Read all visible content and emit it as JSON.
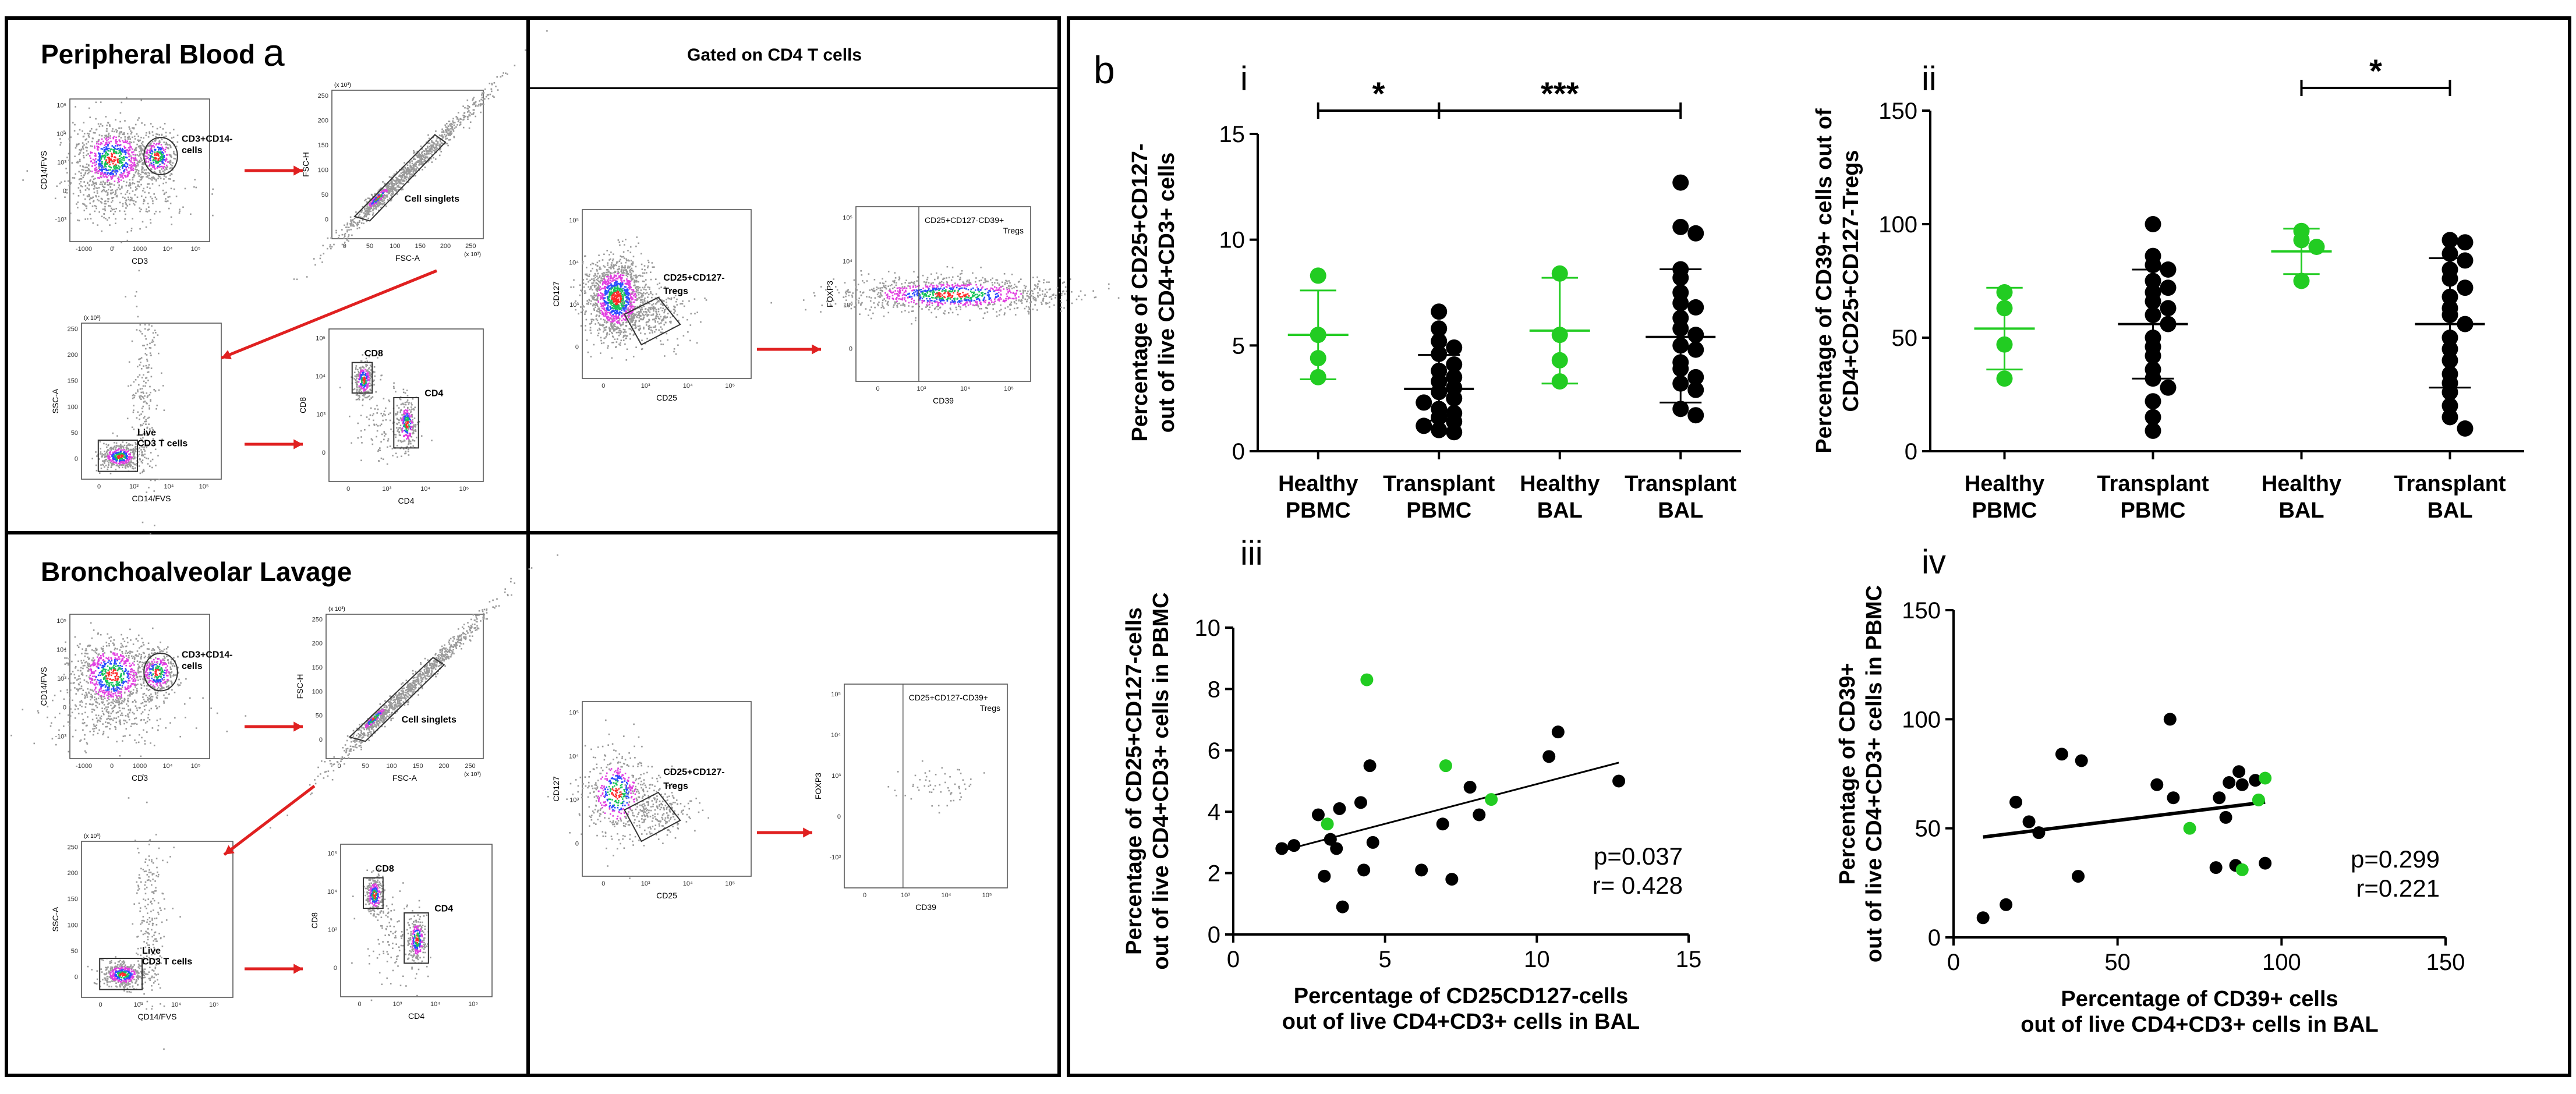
{
  "panel_a": {
    "letter": "a",
    "gated_header": "Gated on CD4 T cells",
    "rows": [
      {
        "title": "Peripheral Blood",
        "plots": [
          {
            "id": "p1",
            "xlabel": "CD3",
            "ylabel": "CD14/FVS",
            "xticks": [
              "-1000",
              "0",
              "1000",
              "10⁴",
              "10⁵"
            ],
            "yticks": [
              "10⁵",
              "10⁴",
              "10³",
              "0",
              "-10³"
            ],
            "gate_label": "CD3+CD14- cells"
          },
          {
            "id": "p2",
            "xlabel": "FSC-A",
            "ylabel": "FSC-H",
            "xticks": [
              "0",
              "50",
              "100",
              "150",
              "200",
              "250"
            ],
            "yticks": [
              "250",
              "200",
              "150",
              "100",
              "50",
              "0"
            ],
            "unit_x": "(x 10³)",
            "unit_y": "(x 10³)",
            "gate_label": "Cell singlets"
          },
          {
            "id": "p3",
            "xlabel": "CD14/FVS",
            "ylabel": "SSC-A",
            "xticks": [
              "0",
              "10³",
              "10⁴",
              "10⁵"
            ],
            "yticks": [
              "250",
              "200",
              "150",
              "100",
              "50",
              "0"
            ],
            "unit_y": "(x 10³)",
            "gate_label": "Live CD3 T cells"
          },
          {
            "id": "p4",
            "xlabel": "CD4",
            "ylabel": "CD8",
            "xticks": [
              "0",
              "10³",
              "10⁴",
              "10⁵"
            ],
            "yticks": [
              "10⁵",
              "10⁴",
              "10³",
              "0"
            ],
            "gate_label": "CD8",
            "gate_label2": "CD4"
          },
          {
            "id": "p5",
            "xlabel": "CD25",
            "ylabel": "CD127",
            "xticks": [
              "0",
              "10³",
              "10⁴",
              "10⁵"
            ],
            "yticks": [
              "10⁵",
              "10⁴",
              "10³",
              "0"
            ],
            "gate_label": "CD25+CD127- Tregs"
          },
          {
            "id": "p6",
            "xlabel": "CD39",
            "ylabel": "FOXP3",
            "xticks": [
              "0",
              "10³",
              "10⁴",
              "10⁵"
            ],
            "yticks": [
              "10⁵",
              "10⁴",
              "10³",
              "0"
            ],
            "gate_label": "CD25+CD127-CD39+ Tregs"
          }
        ]
      },
      {
        "title": "Bronchoalveolar Lavage",
        "plots": [
          {
            "id": "b1",
            "xlabel": "CD3",
            "ylabel": "CD14/FVS",
            "xticks": [
              "-1000",
              "0",
              "1000",
              "10⁴",
              "10⁵"
            ],
            "yticks": [
              "10⁵",
              "10⁴",
              "10³",
              "0",
              "-10³"
            ],
            "gate_label": "CD3+CD14- cells"
          },
          {
            "id": "b2",
            "xlabel": "FSC-A",
            "ylabel": "FSC-H",
            "xticks": [
              "0",
              "50",
              "100",
              "150",
              "200",
              "250"
            ],
            "yticks": [
              "250",
              "200",
              "150",
              "100",
              "50",
              "0"
            ],
            "unit_x": "(x 10³)",
            "unit_y": "(x 10³)",
            "gate_label": "Cell singlets"
          },
          {
            "id": "b3",
            "xlabel": "CD14/FVS",
            "ylabel": "SSC-A",
            "xticks": [
              "0",
              "10³",
              "10⁴",
              "10⁵"
            ],
            "yticks": [
              "250",
              "200",
              "150",
              "100",
              "50",
              "0"
            ],
            "unit_y": "(x 10³)",
            "gate_label": "Live CD3 T cells"
          },
          {
            "id": "b4",
            "xlabel": "CD4",
            "ylabel": "CD8",
            "xticks": [
              "0",
              "10³",
              "10⁴",
              "10⁵"
            ],
            "yticks": [
              "10⁵",
              "10⁴",
              "10³",
              "0"
            ],
            "gate_label": "CD8",
            "gate_label2": "CD4"
          },
          {
            "id": "b5",
            "xlabel": "CD25",
            "ylabel": "CD127",
            "xticks": [
              "0",
              "10³",
              "10⁴",
              "10⁵"
            ],
            "yticks": [
              "10⁵",
              "10⁴",
              "10³",
              "0"
            ],
            "gate_label": "CD25+CD127- Tregs"
          },
          {
            "id": "b6",
            "xlabel": "CD39",
            "ylabel": "FOXP3",
            "xticks": [
              "0",
              "10³",
              "10⁴",
              "10⁵"
            ],
            "yticks": [
              "10⁵",
              "10⁴",
              "10³",
              "0",
              "-10³"
            ],
            "gate_label": "CD25+CD127-CD39+ Tregs"
          }
        ]
      }
    ]
  },
  "panel_b": {
    "letter": "b"
  },
  "colors": {
    "healthy": "#22cc22",
    "transplant": "#000000"
  },
  "chart_data": [
    {
      "id": "i",
      "type": "scatter",
      "panel_label": "i",
      "ylabel": [
        "Percentage of CD25+CD127-",
        "out of live CD4+CD3+ cells"
      ],
      "ylim": [
        0,
        15
      ],
      "yticks": [
        0,
        5,
        10,
        15
      ],
      "categories": [
        "Healthy PBMC",
        "Transplant PBMC",
        "Healthy BAL",
        "Transplant BAL"
      ],
      "cat_lines": [
        [
          "Healthy",
          "PBMC"
        ],
        [
          "Transplant",
          "PBMC"
        ],
        [
          "Healthy",
          "BAL"
        ],
        [
          "Transplant",
          "BAL"
        ]
      ],
      "groups": [
        {
          "name": "Healthy PBMC",
          "color": "healthy",
          "mean": 5.5,
          "sd_low": 3.4,
          "sd_high": 7.6,
          "values": [
            8.3,
            5.5,
            4.4,
            3.5
          ]
        },
        {
          "name": "Transplant PBMC",
          "color": "transplant",
          "mean": 2.95,
          "sd_low": 1.45,
          "sd_high": 4.55,
          "values": [
            6.6,
            5.8,
            5.2,
            4.9,
            4.6,
            4.1,
            3.8,
            3.5,
            3.3,
            3.0,
            2.8,
            2.5,
            2.3,
            2.0,
            1.8,
            1.6,
            1.4,
            1.2,
            1.0,
            0.9
          ]
        },
        {
          "name": "Healthy BAL",
          "color": "healthy",
          "mean": 5.7,
          "sd_low": 3.2,
          "sd_high": 8.2,
          "values": [
            8.4,
            5.5,
            4.3,
            3.3
          ]
        },
        {
          "name": "Transplant BAL",
          "color": "transplant",
          "mean": 5.4,
          "sd_low": 2.3,
          "sd_high": 8.6,
          "values": [
            12.7,
            10.6,
            10.3,
            8.6,
            8.2,
            7.5,
            7.0,
            6.8,
            6.3,
            5.8,
            5.5,
            5.0,
            4.8,
            4.2,
            3.9,
            3.5,
            3.2,
            2.9,
            2.0,
            1.7
          ]
        }
      ],
      "significance": [
        {
          "from": 0,
          "to": 1,
          "label": "*",
          "y": 16.1
        },
        {
          "from": 1,
          "to": 3,
          "label": "***",
          "y": 16.1
        }
      ]
    },
    {
      "id": "ii",
      "type": "scatter",
      "panel_label": "ii",
      "ylabel": [
        "Percentage of CD39+ cells out of",
        "CD4+CD25+CD127-Tregs"
      ],
      "ylim": [
        0,
        150
      ],
      "yticks": [
        0,
        50,
        100,
        150
      ],
      "categories": [
        "Healthy PBMC",
        "Transplant PBMC",
        "Healthy BAL",
        "Transplant BAL"
      ],
      "cat_lines": [
        [
          "Healthy",
          "PBMC"
        ],
        [
          "Transplant",
          "PBMC"
        ],
        [
          "Healthy",
          "BAL"
        ],
        [
          "Transplant",
          "BAL"
        ]
      ],
      "groups": [
        {
          "name": "Healthy PBMC",
          "color": "healthy",
          "mean": 54,
          "sd_low": 36,
          "sd_high": 72,
          "values": [
            70,
            63,
            47,
            32
          ]
        },
        {
          "name": "Transplant PBMC",
          "color": "transplant",
          "mean": 56,
          "sd_low": 32,
          "sd_high": 80,
          "values": [
            100,
            86,
            82,
            80,
            75,
            72,
            70,
            66,
            63,
            60,
            56,
            50,
            46,
            42,
            36,
            32,
            28,
            22,
            15,
            9
          ]
        },
        {
          "name": "Healthy BAL",
          "color": "healthy",
          "mean": 88,
          "sd_low": 78,
          "sd_high": 98,
          "values": [
            97,
            93,
            90,
            75
          ]
        },
        {
          "name": "Transplant BAL",
          "color": "transplant",
          "mean": 56,
          "sd_low": 28,
          "sd_high": 85,
          "values": [
            93,
            92,
            87,
            84,
            80,
            76,
            72,
            68,
            63,
            60,
            56,
            50,
            45,
            40,
            34,
            30,
            26,
            20,
            15,
            10
          ]
        }
      ],
      "significance": [
        {
          "from": 2,
          "to": 3,
          "label": "*",
          "y": 160
        }
      ]
    },
    {
      "id": "iii",
      "type": "scatter",
      "panel_label": "iii",
      "xlabel": [
        "Percentage of CD25CD127-cells",
        "out of live CD4+CD3+ cells in BAL"
      ],
      "ylabel": [
        "Percentage of CD25+CD127-cells",
        "out of live CD4+CD3+ cells  in PBMC"
      ],
      "xlim": [
        0,
        15
      ],
      "ylim": [
        0,
        10
      ],
      "xticks": [
        0,
        5,
        10,
        15
      ],
      "yticks": [
        0,
        2,
        4,
        6,
        8,
        10
      ],
      "points": [
        {
          "x": 1.6,
          "y": 2.8,
          "g": "transplant"
        },
        {
          "x": 2.0,
          "y": 2.9,
          "g": "transplant"
        },
        {
          "x": 2.8,
          "y": 3.9,
          "g": "transplant"
        },
        {
          "x": 3.0,
          "y": 1.9,
          "g": "transplant"
        },
        {
          "x": 3.2,
          "y": 3.1,
          "g": "transplant"
        },
        {
          "x": 3.4,
          "y": 2.8,
          "g": "transplant"
        },
        {
          "x": 3.5,
          "y": 4.1,
          "g": "transplant"
        },
        {
          "x": 3.6,
          "y": 0.9,
          "g": "transplant"
        },
        {
          "x": 4.2,
          "y": 4.3,
          "g": "transplant"
        },
        {
          "x": 4.3,
          "y": 2.1,
          "g": "transplant"
        },
        {
          "x": 4.5,
          "y": 5.5,
          "g": "transplant"
        },
        {
          "x": 4.6,
          "y": 3.0,
          "g": "transplant"
        },
        {
          "x": 6.2,
          "y": 2.1,
          "g": "transplant"
        },
        {
          "x": 6.9,
          "y": 3.6,
          "g": "transplant"
        },
        {
          "x": 7.2,
          "y": 1.8,
          "g": "transplant"
        },
        {
          "x": 7.8,
          "y": 4.8,
          "g": "transplant"
        },
        {
          "x": 8.1,
          "y": 3.9,
          "g": "transplant"
        },
        {
          "x": 10.4,
          "y": 5.8,
          "g": "transplant"
        },
        {
          "x": 10.7,
          "y": 6.6,
          "g": "transplant"
        },
        {
          "x": 12.7,
          "y": 5.0,
          "g": "transplant"
        },
        {
          "x": 3.1,
          "y": 3.6,
          "g": "healthy"
        },
        {
          "x": 4.4,
          "y": 8.3,
          "g": "healthy"
        },
        {
          "x": 7.0,
          "y": 5.5,
          "g": "healthy"
        },
        {
          "x": 8.5,
          "y": 4.4,
          "g": "healthy"
        }
      ],
      "fit": {
        "x0": 1.5,
        "y0": 2.7,
        "x1": 12.7,
        "y1": 5.6
      },
      "stats": [
        "p=0.037",
        "r= 0.428"
      ]
    },
    {
      "id": "iv",
      "type": "scatter",
      "panel_label": "iv",
      "xlabel": [
        "Percentage of CD39+ cells",
        "out of live CD4+CD3+ cells in BAL"
      ],
      "ylabel": [
        "Percentage of CD39+",
        "out of live CD4+CD3+ cells in PBMC"
      ],
      "xlim": [
        0,
        150
      ],
      "ylim": [
        0,
        150
      ],
      "xticks": [
        0,
        50,
        100,
        150
      ],
      "yticks": [
        0,
        50,
        100,
        150
      ],
      "points": [
        {
          "x": 9,
          "y": 9,
          "g": "transplant"
        },
        {
          "x": 16,
          "y": 15,
          "g": "transplant"
        },
        {
          "x": 19,
          "y": 62,
          "g": "transplant"
        },
        {
          "x": 23,
          "y": 53,
          "g": "transplant"
        },
        {
          "x": 26,
          "y": 48,
          "g": "transplant"
        },
        {
          "x": 33,
          "y": 84,
          "g": "transplant"
        },
        {
          "x": 38,
          "y": 28,
          "g": "transplant"
        },
        {
          "x": 39,
          "y": 81,
          "g": "transplant"
        },
        {
          "x": 62,
          "y": 70,
          "g": "transplant"
        },
        {
          "x": 66,
          "y": 100,
          "g": "transplant"
        },
        {
          "x": 67,
          "y": 64,
          "g": "transplant"
        },
        {
          "x": 80,
          "y": 32,
          "g": "transplant"
        },
        {
          "x": 81,
          "y": 64,
          "g": "transplant"
        },
        {
          "x": 83,
          "y": 55,
          "g": "transplant"
        },
        {
          "x": 84,
          "y": 71,
          "g": "transplant"
        },
        {
          "x": 86,
          "y": 33,
          "g": "transplant"
        },
        {
          "x": 87,
          "y": 76,
          "g": "transplant"
        },
        {
          "x": 88,
          "y": 70,
          "g": "transplant"
        },
        {
          "x": 92,
          "y": 72,
          "g": "transplant"
        },
        {
          "x": 95,
          "y": 34,
          "g": "transplant"
        },
        {
          "x": 72,
          "y": 50,
          "g": "healthy"
        },
        {
          "x": 88,
          "y": 31,
          "g": "healthy"
        },
        {
          "x": 93,
          "y": 63,
          "g": "healthy"
        },
        {
          "x": 95,
          "y": 73,
          "g": "healthy"
        }
      ],
      "fit": {
        "x0": 9,
        "y0": 46,
        "x1": 95,
        "y1": 62
      },
      "stats": [
        "p=0.299",
        "r=0.221"
      ]
    }
  ]
}
